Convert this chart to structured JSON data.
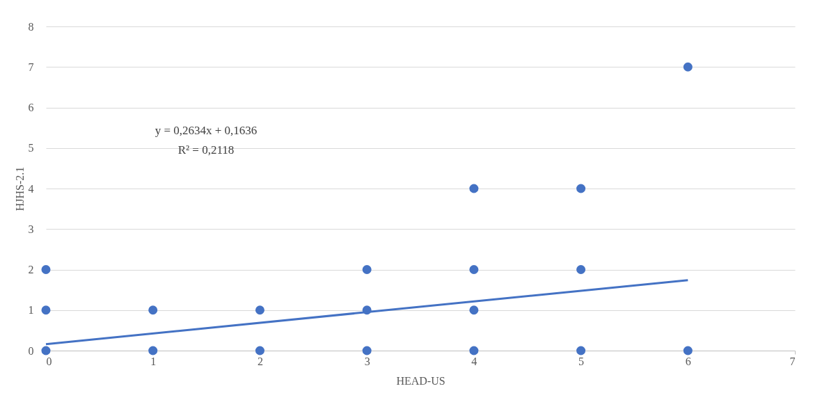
{
  "chart_data": {
    "type": "scatter",
    "xlabel": "HEAD-US",
    "ylabel": "HJHS-2.1",
    "xlim": [
      0,
      7
    ],
    "ylim": [
      0,
      8
    ],
    "xticks": [
      0,
      1,
      2,
      3,
      4,
      5,
      6,
      7
    ],
    "yticks": [
      0,
      1,
      2,
      3,
      4,
      5,
      6,
      7,
      8
    ],
    "grid": "y",
    "legend": false,
    "marker": "circle",
    "annotations": [
      "y = 0,2634x + 0,1636",
      "R² = 0,2118"
    ],
    "series": [
      {
        "color": "#4472c4",
        "x": [
          0,
          0,
          0,
          1,
          1,
          2,
          2,
          3,
          3,
          3,
          4,
          4,
          4,
          4,
          5,
          5,
          5,
          6,
          6
        ],
        "values": [
          0,
          1,
          2,
          0,
          1,
          0,
          1,
          0,
          1,
          2,
          0,
          1,
          2,
          4,
          0,
          2,
          4,
          0,
          7
        ]
      },
      {
        "type": "line",
        "marker": "none",
        "line_style": "solid",
        "color": "#4472c4",
        "x": [
          0,
          6
        ],
        "values": [
          0.16,
          1.74
        ]
      }
    ]
  }
}
